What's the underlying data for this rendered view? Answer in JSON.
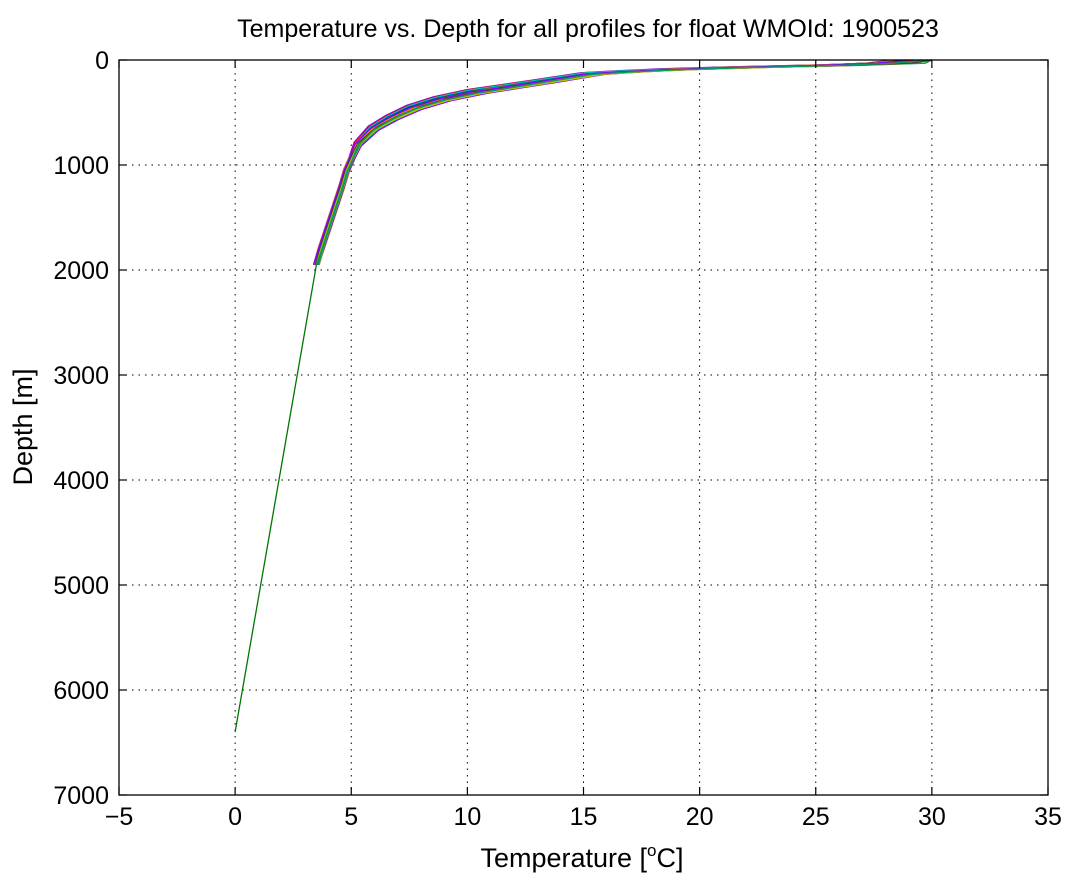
{
  "chart_data": {
    "type": "line",
    "title": "Temperature vs. Depth for all profiles for float WMOId: 1900523",
    "xlabel": "Temperature [",
    "xlabel_sup": "o",
    "xlabel_tail": "C]",
    "ylabel": "Depth [m]",
    "xlim": [
      -5,
      35
    ],
    "ylim": [
      0,
      7000
    ],
    "y_reversed": true,
    "xticks": [
      -5,
      0,
      5,
      10,
      15,
      20,
      25,
      30,
      35
    ],
    "xtick_labels": [
      "−5",
      "0",
      "5",
      "10",
      "15",
      "20",
      "25",
      "30",
      "35"
    ],
    "yticks": [
      0,
      1000,
      2000,
      3000,
      4000,
      5000,
      6000,
      7000
    ],
    "ytick_labels": [
      "0",
      "1000",
      "2000",
      "3000",
      "4000",
      "5000",
      "6000",
      "7000"
    ],
    "grid": true,
    "legend": "none",
    "series_colors": [
      "#0000ff",
      "#008000",
      "#ff0000",
      "#00bfbf",
      "#bf00bf",
      "#bfbf00",
      "#404040",
      "#ff8000",
      "#8000ff",
      "#00a060"
    ],
    "deep_line_color": "#007700",
    "profile_count": 40,
    "reference_profile": {
      "temperature": [
        30.0,
        28.5,
        26.0,
        22.0,
        19.0,
        17.0,
        15.5,
        13.5,
        12.0,
        10.5,
        9.0,
        7.8,
        6.8,
        6.0,
        5.3,
        5.0,
        4.8,
        4.6,
        4.3,
        4.0,
        3.7,
        3.5
      ],
      "depth": [
        0,
        30,
        50,
        70,
        90,
        110,
        130,
        200,
        250,
        300,
        370,
        450,
        550,
        650,
        800,
        950,
        1050,
        1200,
        1400,
        1600,
        1800,
        1950
      ]
    },
    "deep_segment": {
      "temperature": [
        3.5,
        0.0
      ],
      "depth": [
        1950,
        6400
      ]
    }
  }
}
